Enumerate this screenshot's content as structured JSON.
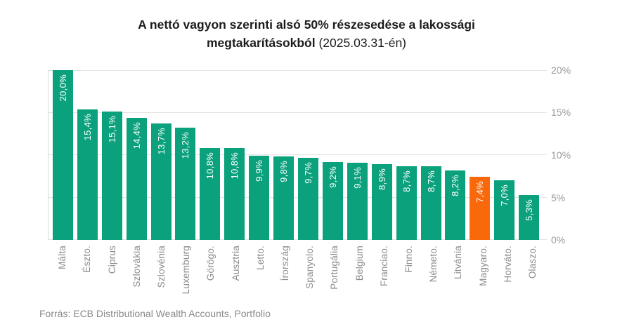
{
  "title": {
    "line1": "A nettó vagyon szerinti alsó 50% részesedése a lakossági",
    "line2_bold": "megtakarításokból",
    "line2_regular": " (2025.03.31-én)"
  },
  "source": "Forrás: ECB Distributional Wealth Accounts, Portfolio",
  "y_axis": {
    "ticks": {
      "t20": "20%",
      "t15": "15%",
      "t10": "10%",
      "t5": "5%",
      "t0": "0%"
    }
  },
  "chart_data": {
    "type": "bar",
    "title": "A nettó vagyon szerinti alsó 50% részesedése a lakossági megtakarításokból (2025.03.31-én)",
    "categories": [
      "Málta",
      "Észto.",
      "Ciprus",
      "Szlovákia",
      "Szlovénia",
      "Luxemburg",
      "Görögo.",
      "Ausztria",
      "Letto.",
      "Írország",
      "Spanyolo.",
      "Portugália",
      "Belgium",
      "Franciao.",
      "Finno.",
      "Németo.",
      "Litvánia",
      "Magyaro.",
      "Horváto.",
      "Olaszo."
    ],
    "values": [
      20.0,
      15.4,
      15.1,
      14.4,
      13.7,
      13.2,
      10.8,
      10.8,
      9.9,
      9.8,
      9.7,
      9.2,
      9.1,
      8.9,
      8.7,
      8.7,
      8.2,
      7.4,
      7.0,
      5.3
    ],
    "value_labels": [
      "20,0%",
      "15,4%",
      "15,1%",
      "14,4%",
      "13,7%",
      "13,2%",
      "10,8%",
      "10,8%",
      "9,9%",
      "9,8%",
      "9,7%",
      "9,2%",
      "9,1%",
      "8,9%",
      "8,7%",
      "8,7%",
      "8,2%",
      "7,4%",
      "7,0%",
      "5,3%"
    ],
    "highlight_index": 17,
    "bar_color": "#0AA17C",
    "highlight_color": "#F9690B",
    "ylim": [
      0,
      20
    ],
    "ytick_labels": [
      "0%",
      "5%",
      "10%",
      "15%",
      "20%"
    ],
    "grid": true,
    "legend": false,
    "xlabel": "",
    "ylabel": ""
  }
}
